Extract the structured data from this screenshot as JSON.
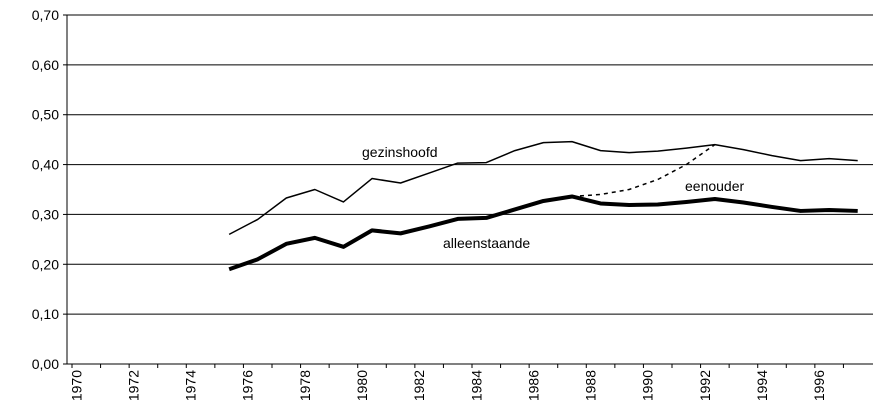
{
  "chart_data": {
    "type": "line",
    "categories": [
      "1970",
      null,
      "1972",
      null,
      "1974",
      null,
      "1976",
      null,
      "1978",
      null,
      "1980",
      null,
      "1982",
      null,
      "1984",
      null,
      "1986",
      null,
      "1988",
      null,
      "1990",
      null,
      "1992",
      null,
      "1994",
      null,
      "1996",
      null
    ],
    "series": [
      {
        "name": "gezinshoofd",
        "color": "#000000",
        "values": [
          null,
          null,
          null,
          null,
          null,
          0.26,
          0.29,
          0.333,
          0.35,
          0.325,
          0.372,
          0.363,
          0.383,
          0.403,
          0.404,
          0.428,
          0.444,
          0.446,
          0.428,
          0.424,
          0.427,
          0.433,
          0.44,
          0.43,
          0.418,
          0.408,
          0.412,
          0.408
        ]
      },
      {
        "name": "eenouder",
        "color": "#000000",
        "values": [
          null,
          null,
          null,
          null,
          null,
          null,
          null,
          null,
          null,
          null,
          null,
          null,
          null,
          null,
          null,
          null,
          null,
          0.336,
          0.34,
          0.35,
          0.37,
          0.4,
          0.44,
          null,
          null,
          null,
          null,
          null
        ]
      },
      {
        "name": "alleenstaande",
        "color": "#000000",
        "values": [
          null,
          null,
          null,
          null,
          null,
          0.19,
          0.21,
          0.241,
          0.253,
          0.235,
          0.268,
          0.262,
          0.276,
          0.291,
          0.293,
          0.31,
          0.327,
          0.336,
          0.322,
          0.319,
          0.32,
          0.325,
          0.331,
          0.324,
          0.315,
          0.307,
          0.309,
          0.307
        ]
      }
    ],
    "ylim": [
      0,
      0.7
    ],
    "yticks": [
      {
        "value": 0,
        "label": "0,00"
      },
      {
        "value": 0.1,
        "label": "0,10"
      },
      {
        "value": 0.2,
        "label": "0,20"
      },
      {
        "value": 0.3,
        "label": "0,30"
      },
      {
        "value": 0.4,
        "label": "0,40"
      },
      {
        "value": 0.5,
        "label": "0,50"
      },
      {
        "value": 0.6,
        "label": "0,60"
      },
      {
        "value": 0.7,
        "label": "0,70"
      }
    ],
    "grid": true
  }
}
